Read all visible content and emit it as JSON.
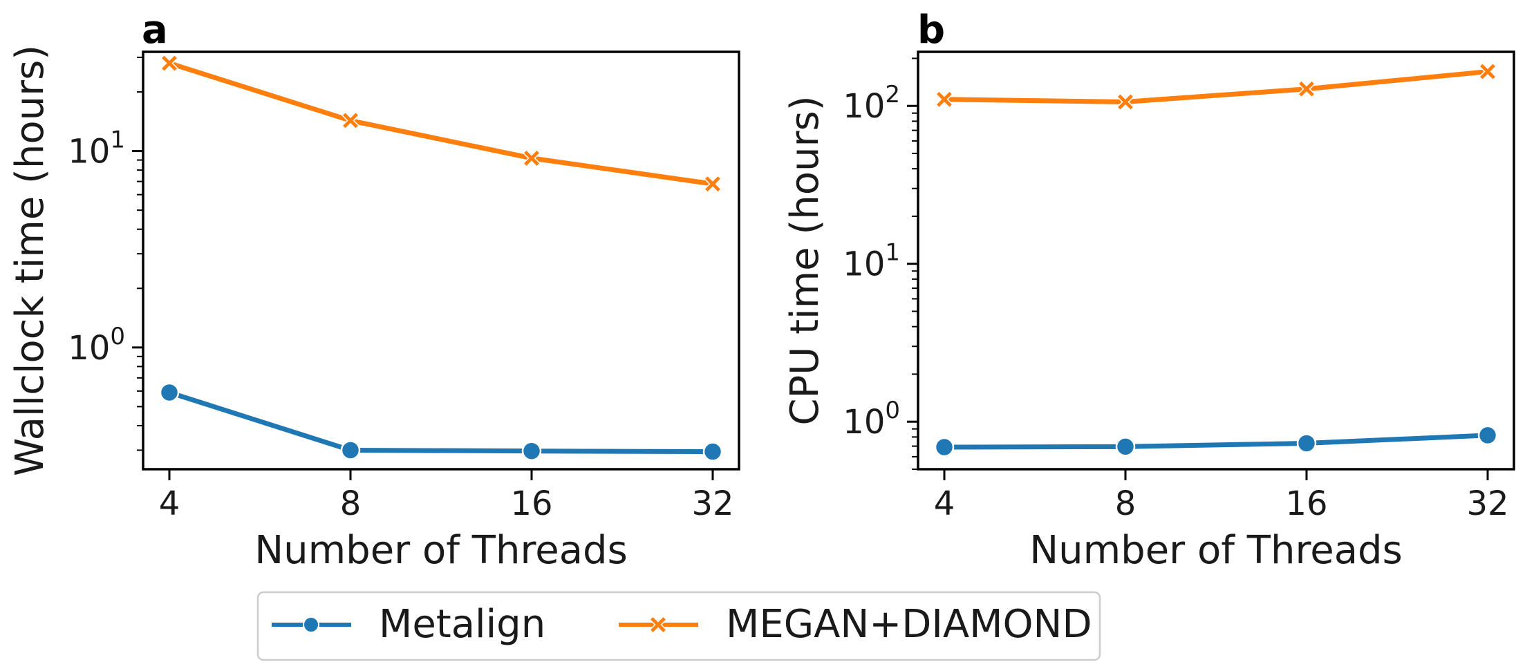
{
  "chart_data": [
    {
      "panel": "a",
      "type": "line",
      "xlabel": "Number of Threads",
      "ylabel": "Wallclock time (hours)",
      "yscale": "log",
      "ylim": [
        0.24,
        32
      ],
      "categories": [
        "4",
        "8",
        "16",
        "32"
      ],
      "yticks": [
        {
          "value": 1,
          "base": "10",
          "exp": "0"
        },
        {
          "value": 10,
          "base": "10",
          "exp": "1"
        }
      ],
      "series": [
        {
          "name": "Metalign",
          "values": [
            0.59,
            0.3,
            0.297,
            0.295
          ]
        },
        {
          "name": "MEGAN+DIAMOND",
          "values": [
            28.0,
            14.3,
            9.2,
            6.8
          ]
        }
      ]
    },
    {
      "panel": "b",
      "type": "line",
      "xlabel": "Number of Threads",
      "ylabel": "CPU time (hours)",
      "yscale": "log",
      "ylim": [
        0.5,
        220
      ],
      "categories": [
        "4",
        "8",
        "16",
        "32"
      ],
      "yticks": [
        {
          "value": 1,
          "base": "10",
          "exp": "0"
        },
        {
          "value": 10,
          "base": "10",
          "exp": "1"
        },
        {
          "value": 100,
          "base": "10",
          "exp": "2"
        }
      ],
      "series": [
        {
          "name": "Metalign",
          "values": [
            0.69,
            0.695,
            0.73,
            0.82
          ]
        },
        {
          "name": "MEGAN+DIAMOND",
          "values": [
            110,
            106,
            128,
            165
          ]
        }
      ]
    }
  ],
  "legend": {
    "placement": "bottom-center",
    "items": [
      {
        "label": "Metalign",
        "color": "#1f77b4",
        "marker": "circle"
      },
      {
        "label": "MEGAN+DIAMOND",
        "color": "#ff7f0e",
        "marker": "x"
      }
    ]
  },
  "colors": {
    "metalign": "#1f77b4",
    "megan": "#ff7f0e"
  }
}
